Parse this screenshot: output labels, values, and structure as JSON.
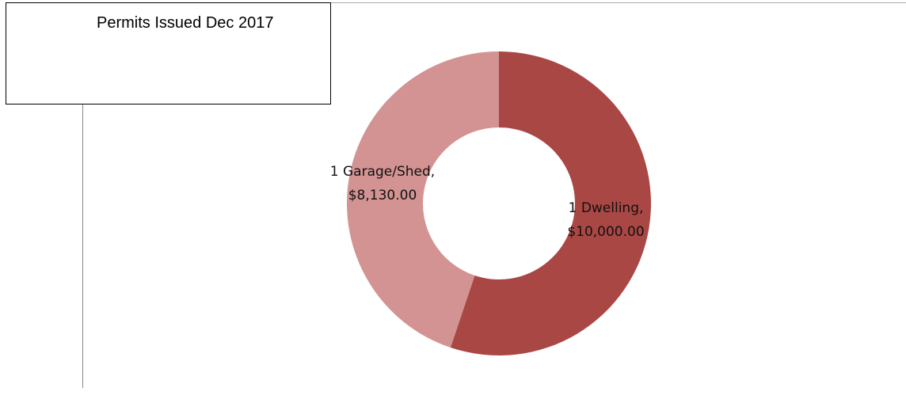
{
  "chart_data": {
    "type": "donut",
    "title": "Permits Issued Dec 2017",
    "categories": [
      "1 Dwelling,",
      "1 Garage/Shed,"
    ],
    "values": [
      10000,
      8130
    ],
    "value_labels": [
      "$10,000.00",
      "$8,130.00"
    ],
    "colors": [
      "#a94744",
      "#d29392"
    ]
  }
}
